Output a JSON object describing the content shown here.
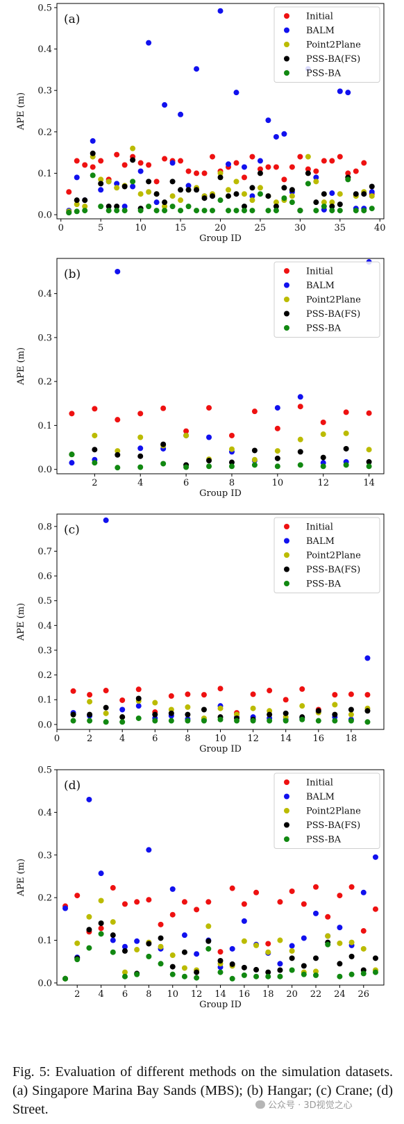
{
  "caption": "Fig. 5: Evaluation of different methods on the simulation datasets. (a) Singapore Marina Bay Sands (MBS); (b) Hangar; (c) Crane; (d) Street.",
  "watermark": "公众号 · 3D视觉之心",
  "colors": {
    "Initial": "#ee1111",
    "BALM": "#1111ee",
    "Point2Plane": "#bbbb00",
    "PSS-BA(FS)": "#000000",
    "PSS-BA": "#118811"
  },
  "chart_data": [
    {
      "type": "scatter",
      "panel_label": "(a)",
      "xlabel": "Group ID",
      "ylabel": "APE (m)",
      "xlim": [
        -0.5,
        40.5
      ],
      "ylim": [
        -0.01,
        0.51
      ],
      "xticks": [
        0,
        5,
        10,
        15,
        20,
        25,
        30,
        35,
        40
      ],
      "yticks": [
        0.0,
        0.1,
        0.2,
        0.3,
        0.4,
        0.5
      ],
      "ytick_labels": [
        "0.0",
        "0.1",
        "0.2",
        "0.3",
        "0.4",
        "0.5"
      ],
      "legend_position": "top-right",
      "x": [
        1,
        2,
        3,
        4,
        5,
        6,
        7,
        8,
        9,
        10,
        11,
        12,
        13,
        14,
        15,
        16,
        17,
        18,
        19,
        20,
        21,
        22,
        23,
        24,
        25,
        26,
        27,
        28,
        29,
        30,
        31,
        32,
        33,
        34,
        35,
        36,
        37,
        38,
        39
      ],
      "series": [
        {
          "name": "Initial",
          "values": [
            0.055,
            0.13,
            0.12,
            0.115,
            0.13,
            0.085,
            0.145,
            0.12,
            0.14,
            0.125,
            0.12,
            0.08,
            0.135,
            0.13,
            0.13,
            0.105,
            0.1,
            0.1,
            0.14,
            0.105,
            0.115,
            0.125,
            0.09,
            0.14,
            0.11,
            0.115,
            0.115,
            0.085,
            0.115,
            0.14,
            0.11,
            0.105,
            0.13,
            0.13,
            0.14,
            0.1,
            0.105,
            0.125,
            0.05
          ]
        },
        {
          "name": "BALM",
          "values": [
            0.01,
            0.09,
            0.035,
            0.178,
            0.06,
            0.08,
            0.075,
            0.02,
            0.068,
            0.105,
            0.415,
            0.03,
            0.265,
            0.125,
            0.242,
            0.07,
            0.352,
            0.045,
            0.045,
            0.492,
            0.122,
            0.295,
            0.115,
            0.045,
            0.13,
            0.228,
            0.188,
            0.195,
            0.055,
            0.01,
            0.352,
            0.09,
            0.012,
            0.052,
            0.298,
            0.295,
            0.015,
            0.015,
            0.055
          ]
        },
        {
          "name": "Point2Plane",
          "values": [
            0.008,
            0.025,
            0.02,
            0.14,
            0.085,
            0.08,
            0.065,
            0.07,
            0.16,
            0.05,
            0.055,
            0.05,
            0.02,
            0.045,
            0.035,
            0.06,
            0.065,
            0.045,
            0.05,
            0.1,
            0.06,
            0.08,
            0.05,
            0.035,
            0.065,
            0.045,
            0.03,
            0.035,
            0.045,
            0.01,
            0.14,
            0.08,
            0.03,
            0.03,
            0.05,
            0.09,
            0.045,
            0.055,
            0.045
          ]
        },
        {
          "name": "PSS-BA(FS)",
          "values": [
            0.005,
            0.035,
            0.035,
            0.148,
            0.075,
            0.02,
            0.02,
            0.068,
            0.132,
            0.015,
            0.08,
            0.05,
            0.03,
            0.08,
            0.06,
            0.06,
            0.06,
            0.04,
            0.045,
            0.09,
            0.045,
            0.05,
            0.02,
            0.065,
            0.1,
            0.045,
            0.02,
            0.065,
            0.06,
            0.01,
            0.1,
            0.03,
            0.05,
            0.02,
            0.025,
            0.09,
            0.05,
            0.05,
            0.068
          ]
        },
        {
          "name": "PSS-BA",
          "values": [
            0.005,
            0.008,
            0.01,
            0.095,
            0.02,
            0.01,
            0.01,
            0.01,
            0.08,
            0.01,
            0.02,
            0.01,
            0.01,
            0.02,
            0.01,
            0.02,
            0.01,
            0.01,
            0.01,
            0.035,
            0.01,
            0.01,
            0.01,
            0.01,
            0.05,
            0.01,
            0.01,
            0.04,
            0.03,
            0.01,
            0.075,
            0.01,
            0.02,
            0.01,
            0.01,
            0.085,
            0.01,
            0.01,
            0.015
          ]
        }
      ]
    },
    {
      "type": "scatter",
      "panel_label": "(b)",
      "xlabel": "Group ID",
      "ylabel": "APE (m)",
      "xlim": [
        0.35,
        14.65
      ],
      "ylim": [
        -0.01,
        0.48
      ],
      "xticks": [
        2,
        4,
        6,
        8,
        10,
        12,
        14
      ],
      "yticks": [
        0.0,
        0.1,
        0.2,
        0.3,
        0.4
      ],
      "ytick_labels": [
        "0.0",
        "0.1",
        "0.2",
        "0.3",
        "0.4"
      ],
      "legend_position": "top-right",
      "x": [
        1,
        2,
        3,
        4,
        5,
        6,
        7,
        8,
        9,
        10,
        11,
        12,
        13,
        14
      ],
      "series": [
        {
          "name": "Initial",
          "values": [
            0.127,
            0.138,
            0.113,
            0.127,
            0.139,
            0.087,
            0.14,
            0.077,
            0.132,
            0.093,
            0.143,
            0.107,
            0.13,
            0.128
          ]
        },
        {
          "name": "BALM",
          "values": [
            0.015,
            0.022,
            0.45,
            0.048,
            0.047,
            0.077,
            0.073,
            0.04,
            0.02,
            0.14,
            0.165,
            0.015,
            0.017,
            0.472
          ]
        },
        {
          "name": "Point2Plane",
          "values": [
            0.034,
            0.077,
            0.042,
            0.073,
            0.054,
            0.077,
            0.023,
            0.046,
            0.022,
            0.042,
            0.068,
            0.08,
            0.082,
            0.045
          ]
        },
        {
          "name": "PSS-BA(FS)",
          "values": [
            0.034,
            0.045,
            0.033,
            0.03,
            0.057,
            0.01,
            0.02,
            0.016,
            0.043,
            0.025,
            0.04,
            0.027,
            0.047,
            0.017
          ]
        },
        {
          "name": "PSS-BA",
          "values": [
            0.034,
            0.015,
            0.004,
            0.005,
            0.013,
            0.005,
            0.007,
            0.007,
            0.01,
            0.007,
            0.01,
            0.007,
            0.01,
            0.007
          ]
        }
      ]
    },
    {
      "type": "scatter",
      "panel_label": "(c)",
      "xlabel": "Group ID",
      "ylabel": "APE (m)",
      "xlim": [
        0,
        20
      ],
      "ylim": [
        -0.02,
        0.85
      ],
      "xticks": [
        0,
        2,
        4,
        6,
        8,
        10,
        12,
        14,
        16,
        18
      ],
      "yticks": [
        0.0,
        0.1,
        0.2,
        0.3,
        0.4,
        0.5,
        0.6,
        0.7,
        0.8
      ],
      "ytick_labels": [
        "0.0",
        "0.1",
        "0.2",
        "0.3",
        "0.4",
        "0.5",
        "0.6",
        "0.7",
        "0.8"
      ],
      "legend_position": "top-right",
      "x": [
        1,
        2,
        3,
        4,
        5,
        6,
        7,
        8,
        9,
        10,
        11,
        12,
        13,
        14,
        15,
        16,
        17,
        18,
        19
      ],
      "series": [
        {
          "name": "Initial",
          "values": [
            0.135,
            0.12,
            0.137,
            0.098,
            0.142,
            0.05,
            0.115,
            0.122,
            0.12,
            0.145,
            0.047,
            0.122,
            0.137,
            0.1,
            0.143,
            0.06,
            0.12,
            0.122,
            0.12
          ]
        },
        {
          "name": "BALM",
          "values": [
            0.047,
            0.035,
            0.825,
            0.06,
            0.075,
            0.025,
            0.035,
            0.022,
            0.02,
            0.075,
            0.03,
            0.03,
            0.025,
            0.02,
            0.025,
            0.05,
            0.03,
            0.02,
            0.268
          ]
        },
        {
          "name": "Point2Plane",
          "values": [
            0.04,
            0.092,
            0.045,
            0.03,
            0.095,
            0.088,
            0.06,
            0.07,
            0.025,
            0.065,
            0.04,
            0.065,
            0.055,
            0.03,
            0.075,
            0.048,
            0.08,
            0.04,
            0.065
          ]
        },
        {
          "name": "PSS-BA(FS)",
          "values": [
            0.04,
            0.04,
            0.068,
            0.03,
            0.105,
            0.04,
            0.045,
            0.04,
            0.06,
            0.03,
            0.025,
            0.02,
            0.04,
            0.045,
            0.03,
            0.055,
            0.04,
            0.06,
            0.055
          ]
        },
        {
          "name": "PSS-BA",
          "values": [
            0.015,
            0.015,
            0.01,
            0.01,
            0.025,
            0.015,
            0.015,
            0.015,
            0.015,
            0.02,
            0.015,
            0.015,
            0.015,
            0.015,
            0.02,
            0.015,
            0.015,
            0.015,
            0.01
          ]
        }
      ]
    },
    {
      "type": "scatter",
      "panel_label": "(d)",
      "xlabel": "Group ID",
      "ylabel": "APE (m)",
      "xlim": [
        0.3,
        27.7
      ],
      "ylim": [
        -0.005,
        0.5
      ],
      "xticks": [
        2,
        4,
        6,
        8,
        10,
        12,
        14,
        16,
        18,
        20,
        22,
        24,
        26
      ],
      "yticks": [
        0.0,
        0.1,
        0.2,
        0.3,
        0.4,
        0.5
      ],
      "ytick_labels": [
        "0.0",
        "0.1",
        "0.2",
        "0.3",
        "0.4",
        "0.5"
      ],
      "legend_position": "top-right",
      "x": [
        1,
        2,
        3,
        4,
        5,
        6,
        7,
        8,
        9,
        10,
        11,
        12,
        13,
        14,
        15,
        16,
        17,
        18,
        19,
        20,
        21,
        22,
        23,
        24,
        25,
        26,
        27
      ],
      "series": [
        {
          "name": "Initial",
          "values": [
            0.18,
            0.205,
            0.12,
            0.128,
            0.223,
            0.185,
            0.19,
            0.195,
            0.137,
            0.16,
            0.19,
            0.172,
            0.19,
            0.073,
            0.222,
            0.185,
            0.212,
            0.092,
            0.19,
            0.215,
            0.185,
            0.225,
            0.155,
            0.205,
            0.225,
            0.122,
            0.173
          ]
        },
        {
          "name": "BALM",
          "values": [
            0.175,
            0.06,
            0.43,
            0.257,
            0.1,
            0.085,
            0.098,
            0.312,
            0.08,
            0.22,
            0.112,
            0.068,
            0.1,
            0.037,
            0.08,
            0.145,
            0.09,
            0.07,
            0.045,
            0.087,
            0.105,
            0.163,
            0.11,
            0.13,
            0.088,
            0.212,
            0.295
          ]
        },
        {
          "name": "Point2Plane",
          "values": [
            0.01,
            0.093,
            0.155,
            0.193,
            0.143,
            0.025,
            0.078,
            0.095,
            0.085,
            0.065,
            0.035,
            0.03,
            0.133,
            0.045,
            0.04,
            0.098,
            0.088,
            0.072,
            0.1,
            0.075,
            0.025,
            0.027,
            0.11,
            0.093,
            0.095,
            0.08,
            0.03
          ]
        },
        {
          "name": "PSS-BA(FS)",
          "values": [
            0.01,
            0.058,
            0.125,
            0.14,
            0.112,
            0.075,
            0.022,
            0.092,
            0.105,
            0.038,
            0.072,
            0.025,
            0.098,
            0.052,
            0.044,
            0.036,
            0.031,
            0.025,
            0.03,
            0.058,
            0.04,
            0.058,
            0.095,
            0.045,
            0.062,
            0.03,
            0.058
          ]
        },
        {
          "name": "PSS-BA",
          "values": [
            0.01,
            0.055,
            0.082,
            0.115,
            0.072,
            0.015,
            0.02,
            0.062,
            0.045,
            0.02,
            0.015,
            0.012,
            0.08,
            0.025,
            0.01,
            0.018,
            0.015,
            0.015,
            0.015,
            0.03,
            0.02,
            0.018,
            0.09,
            0.015,
            0.02,
            0.022,
            0.025
          ]
        }
      ]
    }
  ]
}
